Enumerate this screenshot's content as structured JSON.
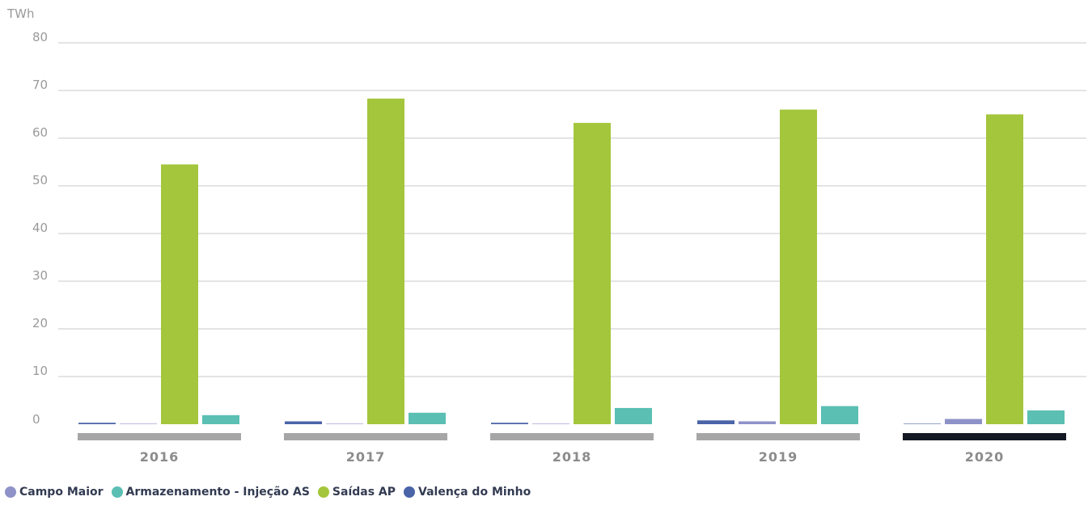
{
  "chart_data": {
    "type": "bar",
    "unit": "TWh",
    "categories": [
      "2016",
      "2017",
      "2018",
      "2019",
      "2020"
    ],
    "selected_category": "2020",
    "ylim": [
      0,
      80
    ],
    "yticks": [
      0,
      10,
      20,
      30,
      40,
      50,
      60,
      70,
      80
    ],
    "grid": true,
    "legend_position": "bottom-left",
    "series": [
      {
        "name": "Valença do Minho",
        "color": "#4a64a8",
        "values": [
          0.3,
          0.6,
          0.3,
          0.8,
          0.1
        ]
      },
      {
        "name": "Campo Maior",
        "color": "#8e92c8",
        "values": [
          0.1,
          0.1,
          0.1,
          0.6,
          1.1
        ]
      },
      {
        "name": "Saídas AP",
        "color": "#a4c63c",
        "values": [
          54.5,
          68.3,
          63.2,
          66.0,
          65.0
        ]
      },
      {
        "name": "Armazenamento - Injeção AS",
        "color": "#5bbfb3",
        "values": [
          1.9,
          2.4,
          3.4,
          3.8,
          2.9
        ]
      }
    ],
    "legend_order": [
      "Campo Maior",
      "Armazenamento - Injeção AS",
      "Saídas AP",
      "Valença do Minho"
    ],
    "colors": {
      "category_bar": "#a6a6a6",
      "category_bar_selected": "#141824",
      "grid": "#c8c8c8",
      "axis_text": "#9a9a9a"
    }
  }
}
